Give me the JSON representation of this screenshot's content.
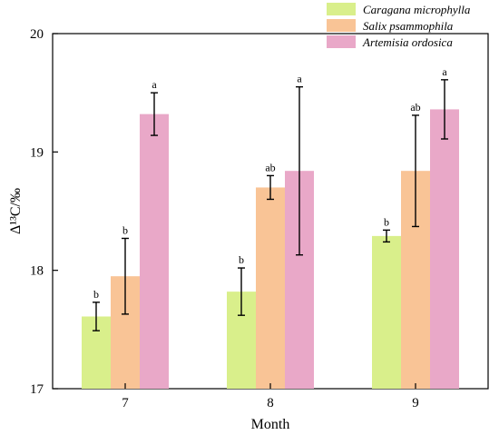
{
  "chart_data": {
    "type": "bar",
    "xlabel": "Month",
    "ylabel": "Δ¹³C/‰",
    "ylim": [
      17,
      20
    ],
    "yticks": [
      17,
      18,
      19,
      20
    ],
    "categories": [
      "7",
      "8",
      "9"
    ],
    "grid": false,
    "legend_position": "top-right",
    "series": [
      {
        "name": "Caragana microphylla",
        "color": "#d9ef8b",
        "values": [
          17.61,
          17.82,
          18.29
        ],
        "errors": [
          0.12,
          0.2,
          0.05
        ],
        "labels": [
          "b",
          "b",
          "b"
        ]
      },
      {
        "name": "Salix psammophila",
        "color": "#f9c496",
        "values": [
          17.95,
          18.7,
          18.84
        ],
        "errors": [
          0.32,
          0.1,
          0.47
        ],
        "labels": [
          "b",
          "ab",
          "ab"
        ]
      },
      {
        "name": "Artemisia ordosica",
        "color": "#e9a8c8",
        "values": [
          19.32,
          18.84,
          19.36
        ],
        "errors": [
          0.18,
          0.71,
          0.25
        ],
        "labels": [
          "a",
          "a",
          "a"
        ]
      }
    ]
  }
}
